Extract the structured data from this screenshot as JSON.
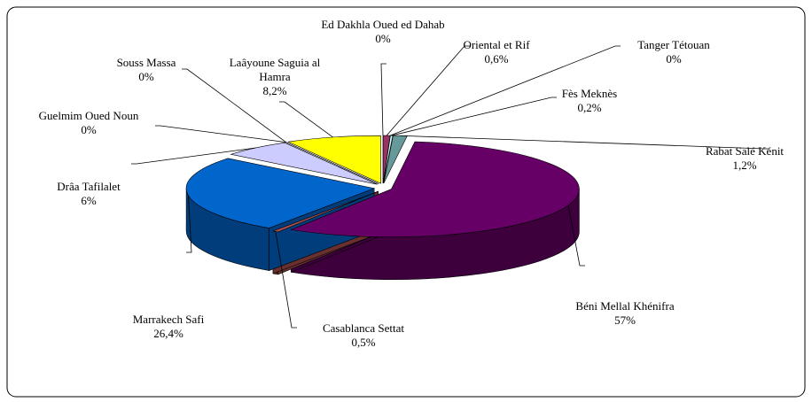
{
  "chart_data": {
    "type": "pie",
    "categories": [
      "Ed Dakhla Oued ed Dahab",
      "Oriental et Rif",
      "Tanger Tétouan",
      "Fès Meknès",
      "Rabat Salé Kénit",
      "Béni Mellal Khénifra",
      "Casablanca Settat",
      "Marrakech Safi",
      "Drâa Tafilalet",
      "Guelmim Oued Noun",
      "Souss Massa",
      "Laâyoune Saguia al Hamra"
    ],
    "values": [
      0,
      0.6,
      0,
      0.2,
      1.2,
      57,
      0.5,
      26.4,
      6,
      0,
      0,
      8.2
    ],
    "value_labels": [
      "0%",
      "0,6%",
      "0%",
      "0,2%",
      "1,2%",
      "57%",
      "0,5%",
      "26,4%",
      "6%",
      "0%",
      "0%",
      "8,2%"
    ],
    "colors": [
      "#808000",
      "#993366",
      "#ffffff",
      "#ccffff",
      "#669999",
      "#660066",
      "#b05050",
      "#0066cc",
      "#ccccff",
      "#666699",
      "#000080",
      "#ffff00"
    ]
  }
}
